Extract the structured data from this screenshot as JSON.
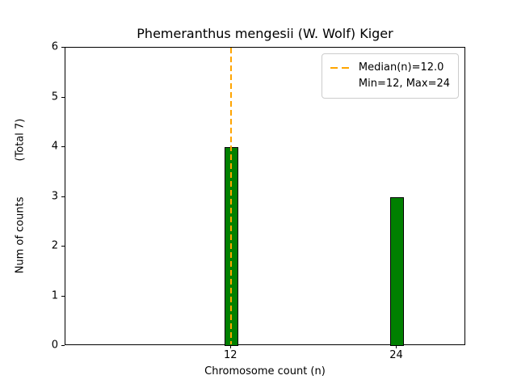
{
  "chart_data": {
    "type": "bar",
    "title": "Phemeranthus mengesii (W. Wolf) Kiger",
    "xlabel": "Chromosome count (n)",
    "ylabel": "Num of counts",
    "total_label": "(Total 7)",
    "total": 7,
    "categories": [
      12,
      24
    ],
    "values": [
      4,
      3
    ],
    "xticks": [
      12,
      24
    ],
    "yticks": [
      0,
      1,
      2,
      3,
      4,
      5,
      6
    ],
    "xlim": [
      0,
      29
    ],
    "ylim": [
      0,
      6
    ],
    "bar_width": 1,
    "bar_color": "#008000",
    "bar_edge_color": "#000000",
    "median_line": {
      "x": 12,
      "style": "dashed",
      "color": "#FFA500"
    },
    "legend": [
      "Median(n)=12.0",
      "Min=12, Max=24"
    ],
    "legend_position": "upper right",
    "grid": false
  }
}
